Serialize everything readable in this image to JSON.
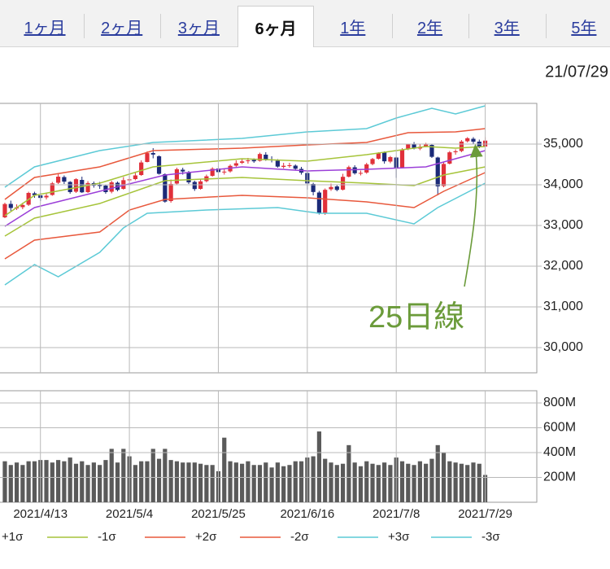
{
  "tabs": [
    {
      "label": "1ヶ月"
    },
    {
      "label": "2ヶ月"
    },
    {
      "label": "3ヶ月"
    },
    {
      "label": "6ヶ月",
      "selected": true
    },
    {
      "label": "1年"
    },
    {
      "label": "2年"
    },
    {
      "label": "3年"
    },
    {
      "label": "5年"
    }
  ],
  "chart_data": [
    {
      "type": "candlestick",
      "date": "21/07/29",
      "annotation": "25日線",
      "up_color": "#e0303a",
      "down_color": "#1b2a78",
      "open": [
        33200,
        33530,
        33420,
        33450,
        33510,
        33790,
        33740,
        33690,
        33750,
        34050,
        34190,
        34070,
        33830,
        34120,
        33820,
        34040,
        33990,
        33980,
        33830,
        34050,
        33900,
        34110,
        34140,
        34240,
        34560,
        34780,
        34700,
        34260,
        33600,
        34030,
        34370,
        34310,
        34070,
        33900,
        34090,
        34220,
        34400,
        34320,
        34330,
        34470,
        34540,
        34580,
        34610,
        34590,
        34740,
        34620,
        34590,
        34440,
        34470,
        34470,
        34390,
        34290,
        34020,
        33810,
        33300,
        33890,
        33960,
        33880,
        34200,
        34430,
        34290,
        34300,
        34510,
        34640,
        34790,
        34570,
        34670,
        34430,
        34880,
        34990,
        34890,
        34940,
        34980,
        34670,
        33970,
        34520,
        34800,
        34830,
        35070,
        35130,
        35060,
        34940
      ],
      "high": [
        33560,
        33610,
        33520,
        33560,
        33830,
        33830,
        33800,
        33790,
        34070,
        34260,
        34230,
        34090,
        34160,
        34200,
        34090,
        34080,
        34070,
        34010,
        34100,
        34080,
        34190,
        34220,
        34310,
        34600,
        34820,
        34900,
        34720,
        34280,
        34130,
        34420,
        34420,
        34340,
        34100,
        34140,
        34250,
        34430,
        34460,
        34400,
        34500,
        34600,
        34650,
        34660,
        34650,
        34790,
        34800,
        34700,
        34630,
        34540,
        34540,
        34500,
        34440,
        34340,
        34050,
        33850,
        33910,
        34030,
        34010,
        34270,
        34470,
        34480,
        34350,
        34540,
        34660,
        34800,
        34820,
        34710,
        34690,
        34900,
        35010,
        35050,
        35000,
        35030,
        35010,
        34690,
        34560,
        34830,
        34870,
        35100,
        35170,
        35170,
        35110,
        35170
      ],
      "low": [
        33180,
        33360,
        33380,
        33400,
        33480,
        33680,
        33600,
        33640,
        33730,
        34020,
        34020,
        33780,
        33800,
        33800,
        33800,
        33930,
        33900,
        33780,
        33790,
        33840,
        33880,
        34040,
        34110,
        34220,
        34550,
        34650,
        34250,
        33560,
        33560,
        34000,
        34250,
        34020,
        33850,
        33880,
        34060,
        34200,
        34290,
        34250,
        34300,
        34440,
        34510,
        34520,
        34540,
        34570,
        34590,
        34550,
        34420,
        34400,
        34420,
        34350,
        34250,
        33880,
        33740,
        33270,
        33260,
        33850,
        33840,
        33860,
        34180,
        34250,
        34230,
        34270,
        34480,
        34620,
        34520,
        34530,
        34170,
        34420,
        34850,
        34870,
        34850,
        34920,
        34660,
        33740,
        33940,
        34500,
        34740,
        34800,
        35040,
        35000,
        34900,
        34920
      ],
      "close": [
        33527,
        33430,
        33446,
        33503,
        33800,
        33745,
        33677,
        33730,
        34035,
        34200,
        34077,
        33821,
        34137,
        33815,
        34043,
        33981,
        33984,
        33820,
        34060,
        33874,
        34113,
        34133,
        34230,
        34548,
        34778,
        34743,
        34270,
        33587,
        34021,
        34382,
        34327,
        34060,
        33896,
        34084,
        34208,
        34394,
        34312,
        34323,
        34465,
        34529,
        34575,
        34600,
        34577,
        34756,
        34630,
        34600,
        34447,
        34467,
        34480,
        34394,
        34299,
        34033,
        33823,
        33290,
        33876,
        33945,
        33874,
        34196,
        34433,
        34283,
        34292,
        34502,
        34633,
        34786,
        34577,
        34681,
        34421,
        34870,
        34996,
        34888,
        34933,
        34987,
        34687,
        33962,
        34512,
        34798,
        34823,
        35062,
        35144,
        35059,
        34931,
        35085
      ],
      "series": [
        {
          "color": "#9b3fd8",
          "x": [
            0,
            5,
            16,
            27,
            40,
            51,
            61,
            71,
            76,
            81
          ],
          "values": [
            32980,
            33440,
            33840,
            34240,
            34440,
            34340,
            34380,
            34440,
            34640,
            34840
          ]
        },
        {
          "name": "+1σ",
          "color": "#a6c43a",
          "x": [
            0,
            5,
            16,
            25,
            40,
            51,
            61,
            71,
            76,
            81
          ],
          "values": [
            33240,
            33740,
            34040,
            34440,
            34640,
            34580,
            34740,
            34940,
            34900,
            34940
          ]
        },
        {
          "name": "-1σ",
          "color": "#a6c43a",
          "x": [
            0,
            5,
            16,
            27,
            40,
            51,
            61,
            69,
            74,
            81
          ],
          "values": [
            32740,
            33180,
            33540,
            34100,
            34180,
            34100,
            34040,
            33980,
            34240,
            34440
          ]
        },
        {
          "name": "+2σ",
          "color": "#e8583c",
          "x": [
            0,
            5,
            16,
            25,
            40,
            51,
            61,
            68,
            76,
            81
          ],
          "values": [
            33640,
            34180,
            34440,
            34840,
            34900,
            34980,
            35040,
            35280,
            35300,
            35380
          ]
        },
        {
          "name": "-2σ",
          "color": "#e8583c",
          "x": [
            0,
            5,
            16,
            21,
            27,
            40,
            51,
            61,
            69,
            74,
            81
          ],
          "values": [
            32180,
            32640,
            32840,
            33380,
            33640,
            33740,
            33680,
            33580,
            33440,
            33840,
            34300
          ]
        },
        {
          "name": "+3σ",
          "color": "#5ccad6",
          "x": [
            0,
            5,
            16,
            25,
            40,
            51,
            61,
            66,
            72,
            76,
            81
          ],
          "values": [
            33940,
            34440,
            34840,
            35040,
            35140,
            35300,
            35380,
            35640,
            35880,
            35740,
            35940
          ]
        },
        {
          "name": "-3σ",
          "color": "#5ccad6",
          "x": [
            0,
            5,
            9,
            16,
            20,
            24,
            34,
            46,
            53,
            61,
            69,
            73,
            81
          ],
          "values": [
            31540,
            32040,
            31740,
            32340,
            32940,
            33300,
            33380,
            33440,
            33300,
            33300,
            33040,
            33440,
            34040
          ]
        }
      ],
      "xlim": [
        -0.82,
        89.7
      ],
      "ylim": [
        29380,
        36000
      ],
      "yticks": [
        {
          "value": 30000,
          "label": "30,000"
        },
        {
          "value": 31000,
          "label": "31,000"
        },
        {
          "value": 32000,
          "label": "32,000"
        },
        {
          "value": 33000,
          "label": "33,000"
        },
        {
          "value": 34000,
          "label": "34,000"
        },
        {
          "value": 35000,
          "label": "35,000"
        }
      ],
      "grid": true
    },
    {
      "type": "bar",
      "color": "#5a5a5a",
      "values": [
        330000000,
        300000000,
        320000000,
        300000000,
        330000000,
        330000000,
        340000000,
        340000000,
        320000000,
        340000000,
        330000000,
        360000000,
        310000000,
        330000000,
        300000000,
        320000000,
        300000000,
        340000000,
        430000000,
        320000000,
        430000000,
        370000000,
        300000000,
        330000000,
        330000000,
        430000000,
        350000000,
        430000000,
        340000000,
        330000000,
        320000000,
        320000000,
        320000000,
        310000000,
        300000000,
        300000000,
        250000000,
        520000000,
        330000000,
        320000000,
        310000000,
        330000000,
        300000000,
        300000000,
        320000000,
        280000000,
        320000000,
        290000000,
        300000000,
        330000000,
        330000000,
        360000000,
        370000000,
        570000000,
        350000000,
        320000000,
        300000000,
        310000000,
        460000000,
        320000000,
        290000000,
        330000000,
        310000000,
        300000000,
        320000000,
        300000000,
        360000000,
        330000000,
        310000000,
        300000000,
        330000000,
        310000000,
        350000000,
        460000000,
        400000000,
        330000000,
        320000000,
        310000000,
        300000000,
        320000000,
        310000000,
        220000000
      ],
      "xlim": [
        -0.82,
        89.7
      ],
      "xticks": [
        {
          "value": 6,
          "label": "2021/4/13"
        },
        {
          "value": 21,
          "label": "2021/5/4"
        },
        {
          "value": 36,
          "label": "2021/5/25"
        },
        {
          "value": 51,
          "label": "2021/6/16"
        },
        {
          "value": 66,
          "label": "2021/7/8"
        },
        {
          "value": 81,
          "label": "2021/7/29"
        }
      ],
      "ylim": [
        0,
        898000000
      ],
      "yticks": [
        {
          "value": 200000000,
          "label": "200M"
        },
        {
          "value": 400000000,
          "label": "400M"
        },
        {
          "value": 600000000,
          "label": "600M"
        },
        {
          "value": 800000000,
          "label": "800M"
        }
      ],
      "grid": true
    }
  ]
}
